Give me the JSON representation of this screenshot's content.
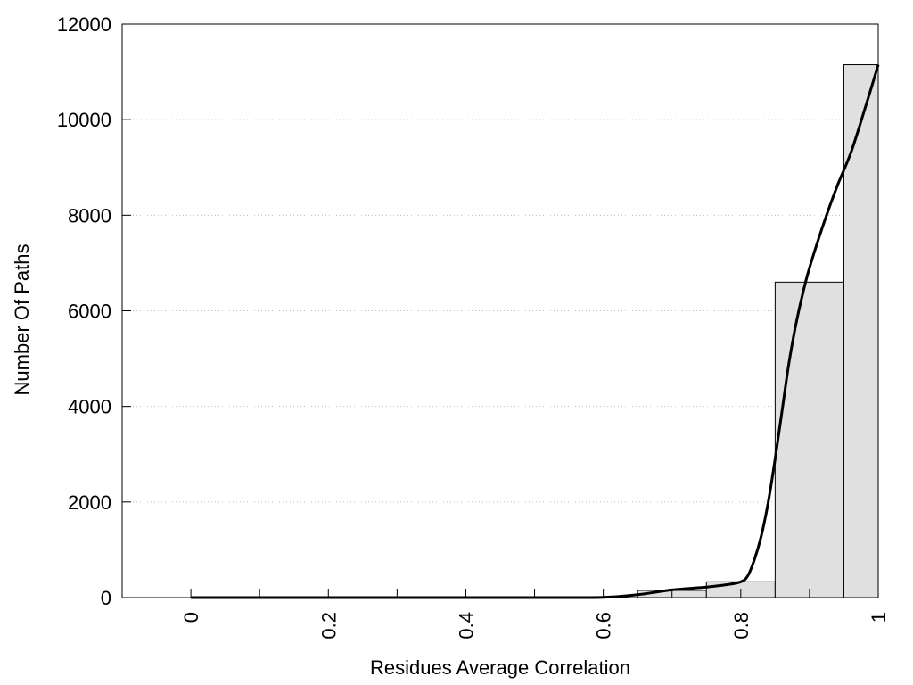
{
  "chart_data": {
    "type": "bar",
    "title": "",
    "xlabel": "Residues Average Correlation",
    "ylabel": "Number Of Paths",
    "xlim": [
      -0.1,
      1.0
    ],
    "ylim": [
      0,
      12000
    ],
    "grid": "horizontal dotted",
    "x_ticks": [
      {
        "value": 0,
        "label": "0"
      },
      {
        "value": 0.2,
        "label": "0.2"
      },
      {
        "value": 0.4,
        "label": "0.4"
      },
      {
        "value": 0.6,
        "label": "0.6"
      },
      {
        "value": 0.8,
        "label": "0.8"
      },
      {
        "value": 1.0,
        "label": "1"
      }
    ],
    "x_minor_ticks": [
      0.1,
      0.3,
      0.5,
      0.7,
      0.9
    ],
    "y_ticks": [
      {
        "value": 0,
        "label": "0"
      },
      {
        "value": 2000,
        "label": "2000"
      },
      {
        "value": 4000,
        "label": "4000"
      },
      {
        "value": 6000,
        "label": "6000"
      },
      {
        "value": 8000,
        "label": "8000"
      },
      {
        "value": 10000,
        "label": "10000"
      },
      {
        "value": 12000,
        "label": "12000"
      }
    ],
    "bars": [
      {
        "x0": 0.65,
        "x1": 0.75,
        "value": 150
      },
      {
        "x0": 0.75,
        "x1": 0.85,
        "value": 330
      },
      {
        "x0": 0.85,
        "x1": 0.95,
        "value": 6600
      },
      {
        "x0": 0.95,
        "x1": 1.0,
        "value": 11150
      }
    ],
    "density_curve": [
      [
        0.0,
        0
      ],
      [
        0.1,
        0
      ],
      [
        0.2,
        0
      ],
      [
        0.3,
        0
      ],
      [
        0.4,
        0
      ],
      [
        0.5,
        0
      ],
      [
        0.6,
        5
      ],
      [
        0.65,
        60
      ],
      [
        0.7,
        160
      ],
      [
        0.75,
        220
      ],
      [
        0.78,
        270
      ],
      [
        0.8,
        330
      ],
      [
        0.81,
        450
      ],
      [
        0.82,
        800
      ],
      [
        0.83,
        1300
      ],
      [
        0.84,
        2000
      ],
      [
        0.85,
        2900
      ],
      [
        0.86,
        3900
      ],
      [
        0.87,
        4900
      ],
      [
        0.88,
        5700
      ],
      [
        0.89,
        6350
      ],
      [
        0.9,
        6900
      ],
      [
        0.92,
        7800
      ],
      [
        0.94,
        8600
      ],
      [
        0.96,
        9300
      ],
      [
        0.98,
        10200
      ],
      [
        1.0,
        11150
      ]
    ]
  }
}
